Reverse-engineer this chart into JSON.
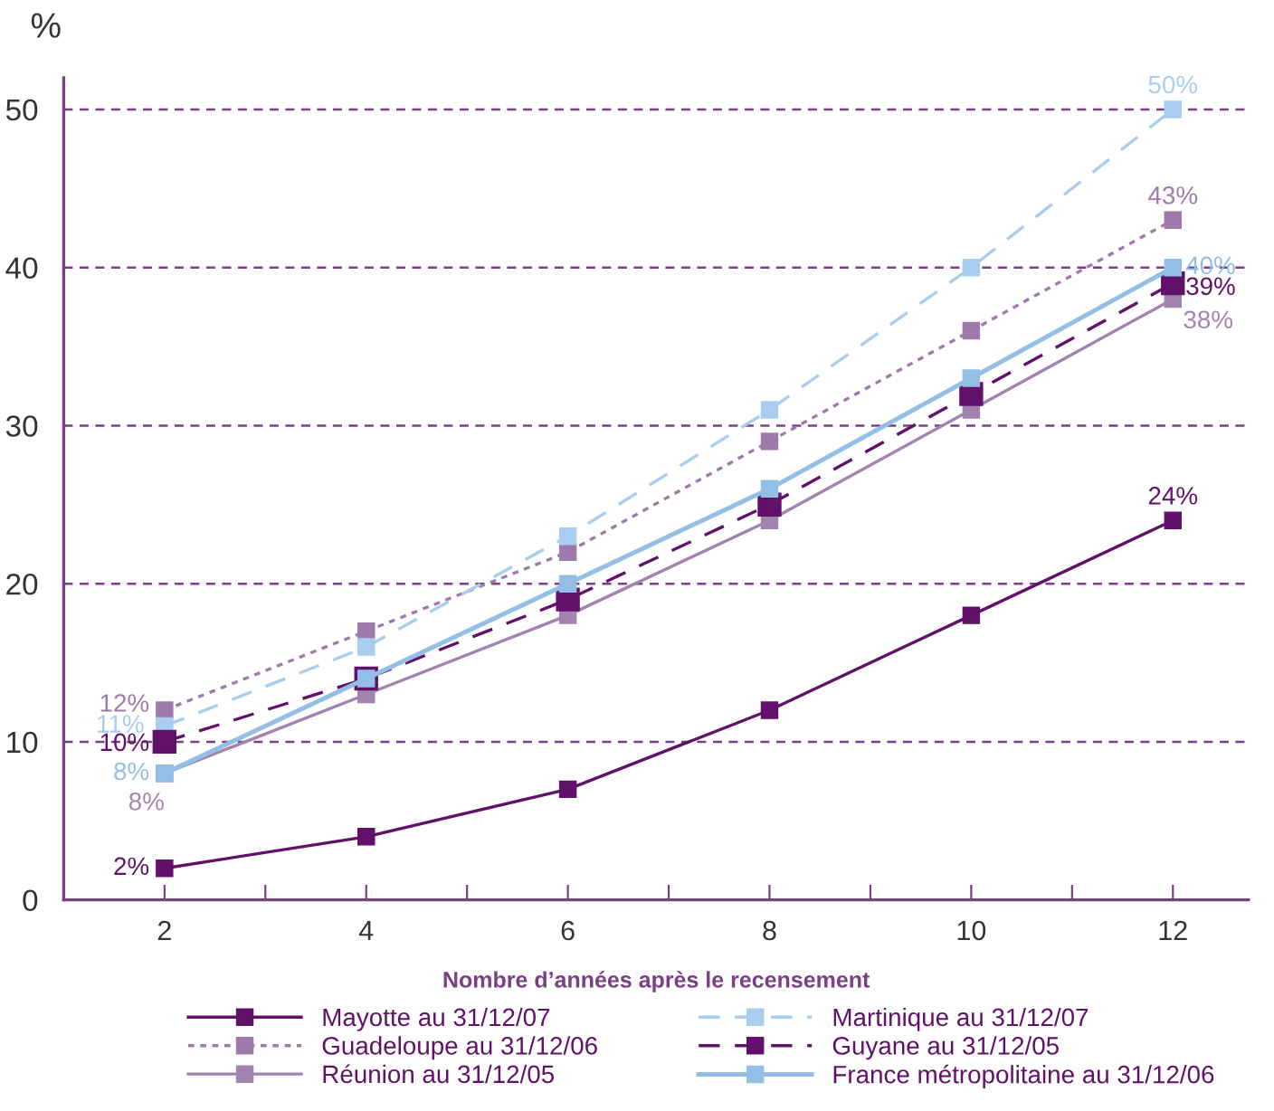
{
  "chart_data": {
    "type": "line",
    "xlabel": "Nombre d’années après le recensement",
    "ylabel": "%",
    "x": [
      2,
      4,
      6,
      8,
      10,
      12
    ],
    "xlim": [
      1,
      12.75
    ],
    "xticks": [
      2,
      {
        "value": 3,
        "label": null
      },
      4,
      {
        "value": 5,
        "label": null
      },
      6,
      {
        "value": 7,
        "label": null
      },
      8,
      {
        "value": 9,
        "label": null
      },
      10,
      {
        "value": 11,
        "label": null
      },
      12
    ],
    "ylim": [
      0,
      52
    ],
    "yticks": [
      0,
      10,
      20,
      30,
      40,
      50
    ],
    "grid": "y",
    "legend": "bottom",
    "marker": "square",
    "series": [
      {
        "name": "Mayotte au 31/12/07",
        "color": "#62116a",
        "line_style": "solid",
        "values": [
          2,
          4,
          7,
          12,
          18,
          24
        ],
        "value_labels": [
          "2%",
          null,
          null,
          null,
          null,
          "24%"
        ]
      },
      {
        "name": "Guadeloupe au 31/12/06",
        "color": "#9e7aab",
        "line_style": "dotted",
        "values": [
          12,
          17,
          22,
          29,
          36,
          43
        ],
        "value_labels": [
          "12%",
          null,
          null,
          null,
          null,
          "43%"
        ]
      },
      {
        "name": "Réunion au 31/12/05",
        "color": "#a183b0",
        "line_style": "solid",
        "values": [
          8,
          13,
          18,
          24,
          31,
          38
        ],
        "value_labels": [
          "8%",
          null,
          null,
          null,
          null,
          "38%"
        ]
      },
      {
        "name": "Martinique au 31/12/07",
        "color": "#a9cdee",
        "line_style": "dashed",
        "values": [
          11,
          16,
          23,
          31,
          40,
          50
        ],
        "value_labels": [
          "11%",
          null,
          null,
          null,
          null,
          "50%"
        ]
      },
      {
        "name": "Guyane au 31/12/05",
        "color": "#62116a",
        "line_style": "dashed",
        "values": [
          10,
          14,
          19,
          25,
          32,
          39
        ],
        "value_labels": [
          "10%",
          null,
          null,
          null,
          null,
          "39%"
        ]
      },
      {
        "name": "France métropolitaine au 31/12/06",
        "color": "#93bfe6",
        "line_style": "solid",
        "values": [
          8,
          14,
          20,
          26,
          33,
          40
        ],
        "value_labels": [
          "8%",
          null,
          null,
          null,
          null,
          "40%"
        ]
      }
    ]
  }
}
